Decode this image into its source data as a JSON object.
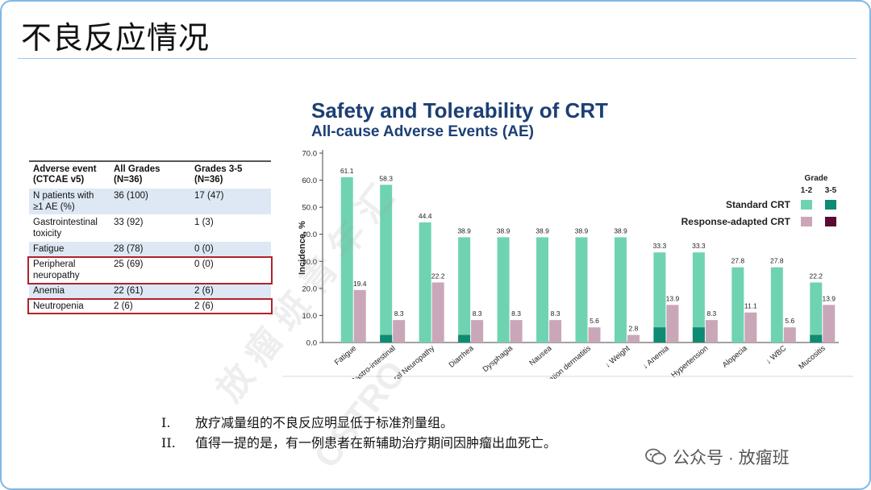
{
  "slide_title": "不良反应情况",
  "table": {
    "headers": [
      "Adverse event (CTCAE v5)",
      "All Grades (N=36)",
      "Grades 3-5 (N=36)"
    ],
    "rows": [
      {
        "event": "N patients with ≥1 AE (%)",
        "all": "36 (100)",
        "g35": "17 (47)",
        "highlight": false
      },
      {
        "event": "Gastrointestinal toxicity",
        "all": "33 (92)",
        "g35": "1 (3)",
        "highlight": false
      },
      {
        "event": "Fatigue",
        "all": "28 (78)",
        "g35": "0 (0)",
        "highlight": false
      },
      {
        "event": "Peripheral neuropathy",
        "all": "25 (69)",
        "g35": "0 (0)",
        "highlight": true
      },
      {
        "event": "Anemia",
        "all": "22 (61)",
        "g35": "2 (6)",
        "highlight": false
      },
      {
        "event": "Neutropenia",
        "all": "2 (6)",
        "g35": "2 (6)",
        "highlight": true
      }
    ]
  },
  "chart_data": {
    "type": "bar",
    "title": "Safety and Tolerability of CRT",
    "subtitle": "All-cause Adverse Events (AE)",
    "ylabel": "Incidence, %",
    "ylim": [
      0,
      70
    ],
    "yticks": [
      "0.0",
      "10.0",
      "20.0",
      "30.0",
      "40.0",
      "50.0",
      "60.0",
      "70.0"
    ],
    "categories": [
      "Fatigue",
      "Gastro-intestinal",
      "Peripheral Neuropathy",
      "Diarrhea",
      "Dysphagia",
      "Nausea",
      "Radiation dermatitis",
      "↓ Weight",
      "↓ Anemia",
      "Hypertension",
      "Alopecia",
      "↓ WBC",
      "Mucositis"
    ],
    "series": [
      {
        "name": "Standard CRT",
        "values": [
          61.1,
          58.3,
          44.4,
          38.9,
          38.9,
          38.9,
          38.9,
          38.9,
          33.3,
          33.3,
          27.8,
          27.8,
          22.2
        ],
        "grade35": [
          0,
          2.8,
          0,
          2.8,
          0,
          0,
          0,
          0,
          5.6,
          5.6,
          0,
          0,
          2.8
        ],
        "labels": [
          "61.1",
          "58.3",
          "44.4",
          "38.9",
          "38.9",
          "38.9",
          "38.9",
          "38.9",
          "33.3",
          "33.3",
          "27.8",
          "27.8",
          "22.2"
        ]
      },
      {
        "name": "Response-adapted CRT",
        "values": [
          19.4,
          8.3,
          22.2,
          8.3,
          8.3,
          8.3,
          5.6,
          2.8,
          13.9,
          8.3,
          11.1,
          5.6,
          13.9
        ],
        "grade35": [
          0,
          0,
          0,
          0,
          0,
          0,
          0,
          0,
          0,
          0,
          0,
          0,
          0
        ],
        "labels": [
          "19.4",
          "8.3",
          "22.2",
          "8.3",
          "8.3",
          "8.3",
          "5.6",
          "2.8",
          "13.9",
          "8.3",
          "11.1",
          "5.6",
          "13.9"
        ]
      }
    ],
    "legend": {
      "title": "Grade",
      "col1": "1-2",
      "col2": "3-5",
      "placement": "top-right"
    },
    "colors": {
      "standard_12": "#6fd3b2",
      "standard_35": "#0f8a73",
      "adapted_12": "#c9a6b8",
      "adapted_35": "#5a0a33"
    }
  },
  "notes": [
    {
      "num": "I.",
      "text": "放疗减量组的不良反应明显低于标准剂量组。"
    },
    {
      "num": "II.",
      "text": "值得一提的是，有一例患者在新辅助治疗期间因肿瘤出血死亡。"
    }
  ],
  "footer": {
    "account": "公众号 · 放瘤班"
  },
  "watermark": {
    "text1": "放 瘤 班 青 年 汇",
    "text2": "CSTRO"
  }
}
